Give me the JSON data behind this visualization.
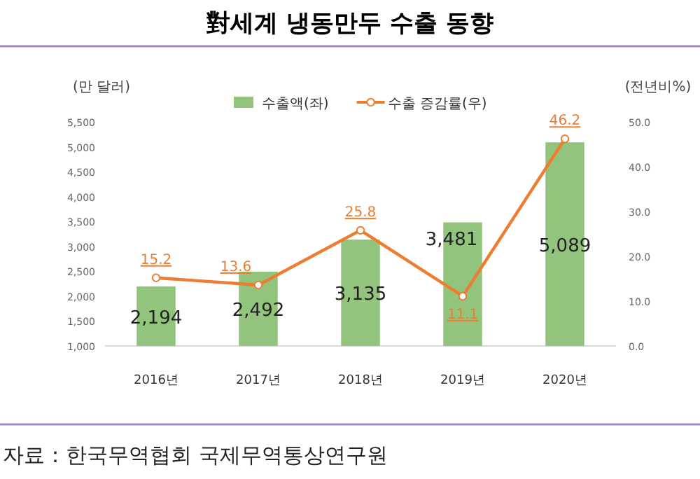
{
  "chart_data": {
    "type": "bar",
    "title": "對세계 냉동만두 수출 동향",
    "ylabel": "(만 달러)",
    "y2label": "(전년비%)",
    "categories": [
      "2016년",
      "2017년",
      "2018년",
      "2019년",
      "2020년"
    ],
    "series": [
      {
        "name": "수출액(좌)",
        "color": "#93c47d",
        "values": [
          2194,
          2492,
          3135,
          3481,
          5089
        ],
        "value_labels": [
          "2,194",
          "2,492",
          "3,135",
          "3,481",
          "5,089"
        ]
      },
      {
        "name": "수출 증감률(우)",
        "type": "line",
        "axis": "y2",
        "color": "#ed7d31",
        "marker": "circle",
        "values": [
          15.2,
          13.6,
          25.8,
          11.1,
          46.2
        ]
      }
    ],
    "ylim": [
      1000,
      5500
    ],
    "yticks": [
      {
        "value": 1000,
        "label": "1,000"
      },
      {
        "value": 1500,
        "label": "1,500"
      },
      {
        "value": 2000,
        "label": "2,000"
      },
      {
        "value": 2500,
        "label": "2,500"
      },
      {
        "value": 3000,
        "label": "3,000"
      },
      {
        "value": 3500,
        "label": "3,500"
      },
      {
        "value": 4000,
        "label": "4,000"
      },
      {
        "value": 4500,
        "label": "4,500"
      },
      {
        "value": 5000,
        "label": "5,000"
      },
      {
        "value": 5500,
        "label": "5,500"
      }
    ],
    "y2lim": [
      0,
      50
    ],
    "y2ticks": [
      {
        "value": 0,
        "label": "0.0"
      },
      {
        "value": 10,
        "label": "10.0"
      },
      {
        "value": 20,
        "label": "20.0"
      },
      {
        "value": 30,
        "label": "30.0"
      },
      {
        "value": 40,
        "label": "40.0"
      },
      {
        "value": 50,
        "label": "50.0"
      }
    ],
    "data_labels": true,
    "legend": "top",
    "grid": false,
    "annotations": [
      "자료：한국무역협회 국제무역통상연구원"
    ]
  }
}
